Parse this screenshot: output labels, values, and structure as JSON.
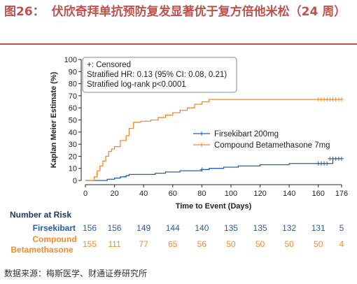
{
  "figure": {
    "number": "图26：",
    "title": "伏欣奇拜单抗预防复发显著优于复方倍他米松（24 周）",
    "source": "数据来源：梅斯医学、财通证券研究所"
  },
  "colors": {
    "title": "#c0504d",
    "firsekibart": "#2a5ba8",
    "compound": "#f28b30",
    "risk_header": "#1f3864"
  },
  "chart_data": {
    "type": "line",
    "xlabel": "Time to Event (Days)",
    "ylabel": "Kaplan Meier Estimate (%)",
    "xlim": [
      0,
      176
    ],
    "ylim": [
      0,
      100
    ],
    "xticks": [
      0,
      20,
      40,
      60,
      80,
      100,
      120,
      140,
      160,
      176
    ],
    "yticks": [
      0,
      10,
      20,
      30,
      40,
      50,
      60,
      70,
      80,
      90,
      100
    ],
    "annotation": [
      "+: Censored",
      "Stratified HR: 0.13 (95% CI: 0.08, 0.21)",
      "Stratified log-rank p<0.0001"
    ],
    "series": [
      {
        "name": "Firsekibart 200mg",
        "color": "#2a5ba8",
        "steps": [
          [
            0,
            0
          ],
          [
            14,
            0
          ],
          [
            15,
            1
          ],
          [
            20,
            2
          ],
          [
            24,
            3
          ],
          [
            28,
            4
          ],
          [
            30,
            5
          ],
          [
            48,
            6
          ],
          [
            55,
            7
          ],
          [
            65,
            8
          ],
          [
            80,
            9
          ],
          [
            85,
            10
          ],
          [
            95,
            11
          ],
          [
            105,
            12
          ],
          [
            120,
            13
          ],
          [
            140,
            14
          ],
          [
            150,
            14
          ],
          [
            160,
            14
          ],
          [
            167,
            14
          ],
          [
            170,
            18
          ],
          [
            176,
            18
          ]
        ],
        "censored": [
          [
            80,
            9
          ],
          [
            160,
            14
          ],
          [
            162,
            14
          ],
          [
            164,
            14
          ],
          [
            166,
            14
          ],
          [
            168,
            18
          ],
          [
            170,
            18
          ],
          [
            172,
            18
          ],
          [
            174,
            18
          ],
          [
            176,
            18
          ]
        ]
      },
      {
        "name": "Compound Betamethasone 7mg",
        "color": "#f28b30",
        "steps": [
          [
            0,
            0
          ],
          [
            5,
            0
          ],
          [
            6,
            3
          ],
          [
            8,
            8
          ],
          [
            10,
            12
          ],
          [
            12,
            16
          ],
          [
            14,
            20
          ],
          [
            16,
            24
          ],
          [
            18,
            26
          ],
          [
            20,
            28
          ],
          [
            24,
            33
          ],
          [
            28,
            37
          ],
          [
            30,
            43
          ],
          [
            33,
            48
          ],
          [
            38,
            49
          ],
          [
            45,
            50
          ],
          [
            50,
            52
          ],
          [
            55,
            54
          ],
          [
            60,
            56
          ],
          [
            65,
            58
          ],
          [
            70,
            60
          ],
          [
            75,
            63
          ],
          [
            80,
            65
          ],
          [
            85,
            67
          ],
          [
            100,
            67
          ],
          [
            120,
            67
          ],
          [
            160,
            67
          ],
          [
            176,
            67
          ]
        ],
        "censored": [
          [
            160,
            67
          ],
          [
            162,
            67
          ],
          [
            164,
            67
          ],
          [
            166,
            67
          ],
          [
            168,
            67
          ],
          [
            170,
            67
          ],
          [
            172,
            67
          ],
          [
            174,
            67
          ],
          [
            176,
            67
          ]
        ]
      }
    ],
    "risk_table": {
      "header": "Number at Risk",
      "times": [
        0,
        20,
        40,
        60,
        80,
        100,
        120,
        140,
        160,
        176
      ],
      "rows": [
        {
          "label": "Firsekibart",
          "values": [
            "156",
            "156",
            "149",
            "144",
            "140",
            "135",
            "135",
            "132",
            "131",
            "5"
          ]
        },
        {
          "label_line1": "Compound",
          "label_line2": "Betamethasone",
          "values": [
            "155",
            "111",
            "77",
            "65",
            "56",
            "50",
            "50",
            "50",
            "50",
            "4"
          ]
        }
      ]
    }
  }
}
